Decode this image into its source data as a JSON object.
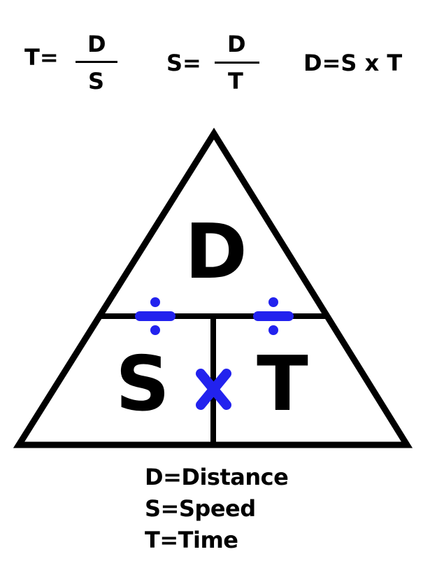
{
  "formulas": {
    "time": {
      "lhs": "T=",
      "numerator": "D",
      "denominator": "S"
    },
    "speed": {
      "lhs": "S=",
      "numerator": "D",
      "denominator": "T"
    },
    "distance": {
      "text": "D=S x T"
    }
  },
  "triangle": {
    "top_label": "D",
    "left_label": "S",
    "right_label": "T",
    "multiply_symbol": "×",
    "divide_symbol": "÷",
    "operator_color": "#2222ee",
    "line_color": "#000000"
  },
  "legend": [
    "D=Distance",
    "S=Speed",
    "T=Time"
  ]
}
